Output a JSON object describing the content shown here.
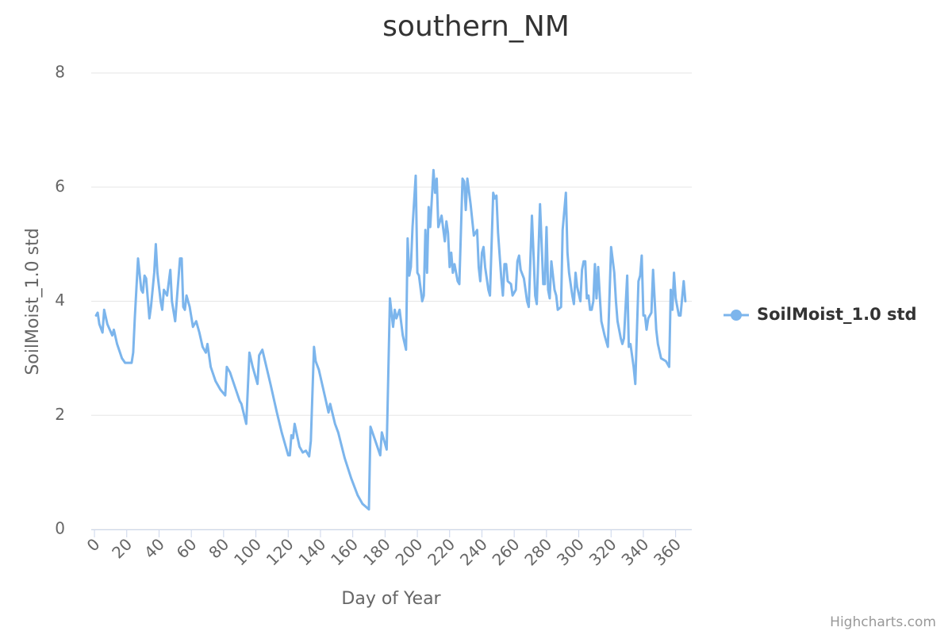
{
  "chart_data": {
    "type": "line",
    "title": "southern_NM",
    "x_label": "Day of Year",
    "y_label": "SoilMoist_1.0 std",
    "credits": "Highcharts.com",
    "xlim": [
      -2,
      370
    ],
    "xticks": [
      0,
      20,
      40,
      60,
      80,
      100,
      120,
      140,
      160,
      180,
      200,
      220,
      240,
      260,
      280,
      300,
      320,
      340,
      360
    ],
    "ylim": [
      0,
      8
    ],
    "yticks": [
      0,
      2,
      4,
      6,
      8
    ],
    "grid": true,
    "legend": "right",
    "x": [
      1,
      2,
      3,
      5,
      6,
      8,
      11,
      12,
      14,
      17,
      19,
      23,
      24,
      25,
      27,
      29,
      30,
      31,
      32,
      34,
      35,
      37,
      38,
      39,
      41,
      42,
      43,
      45,
      47,
      48,
      50,
      53,
      54,
      55,
      56,
      57,
      59,
      61,
      62,
      63,
      65,
      67,
      69,
      70,
      72,
      75,
      78,
      81,
      82,
      84,
      87,
      90,
      91,
      94,
      96,
      98,
      101,
      102,
      104,
      109,
      113,
      116,
      120,
      121,
      122,
      123,
      124,
      127,
      129,
      131,
      133,
      134,
      136,
      137,
      139,
      143,
      145,
      146,
      149,
      151,
      155,
      159,
      163,
      166,
      170,
      171,
      174,
      177,
      178,
      181,
      183,
      185,
      186,
      187,
      189,
      191,
      193,
      194,
      195,
      196,
      197,
      199,
      200,
      201,
      203,
      204,
      205,
      206,
      207,
      208,
      210,
      211,
      212,
      213,
      215,
      217,
      218,
      219,
      220,
      221,
      222,
      223,
      225,
      226,
      228,
      229,
      230,
      231,
      233,
      235,
      237,
      238,
      239,
      240,
      241,
      242,
      244,
      245,
      247,
      248,
      249,
      250,
      252,
      253,
      254,
      255,
      256,
      258,
      259,
      261,
      262,
      263,
      264,
      266,
      268,
      269,
      271,
      272,
      273,
      274,
      276,
      278,
      279,
      280,
      281,
      282,
      283,
      285,
      286,
      287,
      289,
      290,
      292,
      293,
      294,
      296,
      297,
      298,
      299,
      301,
      302,
      303,
      304,
      305,
      306,
      307,
      308,
      309,
      310,
      311,
      312,
      313,
      314,
      316,
      318,
      320,
      322,
      323,
      324,
      326,
      327,
      328,
      330,
      331,
      332,
      334,
      335,
      337,
      338,
      339,
      340,
      341,
      342,
      343,
      345,
      346,
      348,
      349,
      351,
      354,
      356,
      357,
      358,
      359,
      360,
      362,
      363,
      365,
      366
    ],
    "series": [
      {
        "name": "SoilMoist_1.0 std",
        "color": "#7cb5ec",
        "values": [
          3.75,
          3.8,
          3.6,
          3.45,
          3.85,
          3.6,
          3.4,
          3.5,
          3.25,
          3.0,
          2.92,
          2.92,
          3.1,
          3.7,
          4.75,
          4.2,
          4.15,
          4.45,
          4.4,
          3.7,
          3.9,
          4.5,
          5.0,
          4.5,
          4.0,
          3.85,
          4.2,
          4.1,
          4.55,
          4.0,
          3.65,
          4.75,
          4.75,
          3.9,
          3.85,
          4.1,
          3.9,
          3.55,
          3.6,
          3.65,
          3.45,
          3.2,
          3.1,
          3.25,
          2.85,
          2.6,
          2.45,
          2.35,
          2.85,
          2.75,
          2.5,
          2.25,
          2.2,
          1.85,
          3.1,
          2.85,
          2.55,
          3.05,
          3.15,
          2.55,
          2.05,
          1.7,
          1.3,
          1.3,
          1.65,
          1.6,
          1.85,
          1.45,
          1.35,
          1.38,
          1.28,
          1.55,
          3.2,
          2.95,
          2.8,
          2.3,
          2.05,
          2.2,
          1.85,
          1.7,
          1.25,
          0.9,
          0.6,
          0.45,
          0.35,
          1.8,
          1.55,
          1.3,
          1.7,
          1.4,
          4.05,
          3.55,
          3.85,
          3.7,
          3.85,
          3.4,
          3.15,
          5.1,
          4.45,
          4.6,
          5.3,
          6.2,
          4.5,
          4.45,
          4.0,
          4.1,
          5.25,
          4.5,
          5.65,
          5.3,
          6.3,
          5.9,
          6.15,
          5.3,
          5.5,
          5.05,
          5.4,
          5.2,
          4.6,
          4.85,
          4.5,
          4.65,
          4.35,
          4.3,
          6.15,
          6.1,
          5.6,
          6.15,
          5.7,
          5.15,
          5.25,
          4.6,
          4.35,
          4.85,
          4.95,
          4.6,
          4.2,
          4.1,
          5.9,
          5.8,
          5.85,
          5.2,
          4.4,
          4.1,
          4.65,
          4.65,
          4.35,
          4.3,
          4.1,
          4.2,
          4.7,
          4.8,
          4.55,
          4.4,
          4.0,
          3.9,
          5.5,
          4.8,
          4.1,
          3.95,
          5.7,
          4.3,
          4.3,
          5.3,
          4.2,
          4.05,
          4.7,
          4.2,
          4.1,
          3.85,
          3.9,
          5.25,
          5.9,
          4.85,
          4.5,
          4.1,
          3.95,
          4.5,
          4.25,
          4.0,
          4.55,
          4.7,
          4.7,
          4.05,
          4.1,
          3.85,
          3.85,
          4.0,
          4.65,
          4.05,
          4.6,
          4.1,
          3.65,
          3.4,
          3.2,
          4.95,
          4.5,
          4.0,
          3.65,
          3.35,
          3.25,
          3.35,
          4.45,
          3.2,
          3.25,
          2.85,
          2.55,
          4.35,
          4.45,
          4.8,
          3.75,
          3.75,
          3.5,
          3.7,
          3.8,
          4.55,
          3.5,
          3.25,
          3.0,
          2.95,
          2.85,
          4.2,
          3.85,
          4.5,
          4.05,
          3.75,
          3.75,
          4.35,
          4.0
        ]
      }
    ]
  }
}
